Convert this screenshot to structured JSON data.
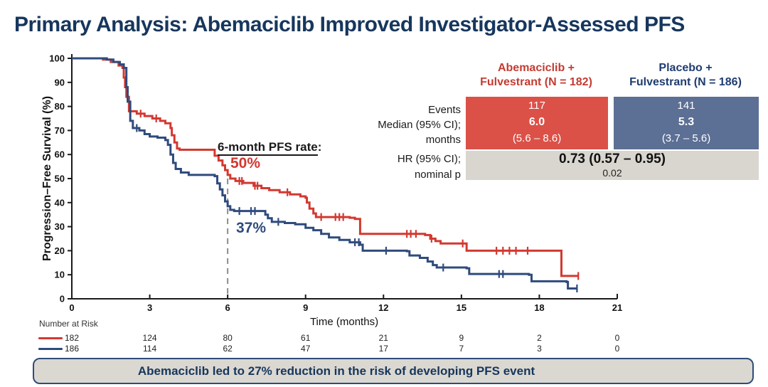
{
  "title": "Primary Analysis: Abemaciclib Improved Investigator-Assessed PFS",
  "annotations": {
    "heading": "6-month PFS rate",
    "colon": ":",
    "abemaciclib_rate": "50%",
    "placebo_rate": "37%"
  },
  "results_table": {
    "row_labels": {
      "events": "Events",
      "median1": "Median (95% CI);",
      "median2": "months",
      "hr1": "HR (95% CI);",
      "hr2": "nominal p"
    },
    "col1": {
      "header1": "Abemaciclib +",
      "header2": "Fulvestrant (N = 182)",
      "events": "117",
      "median": "6.0",
      "median_ci": "(5.6 – 8.6)"
    },
    "col2": {
      "header1": "Placebo +",
      "header2": "Fulvestrant (N = 186)",
      "events": "141",
      "median": "5.3",
      "median_ci": "(3.7 – 5.6)"
    },
    "hr_value": "0.73 (0.57 – 0.95)",
    "p_value": "0.02"
  },
  "banner": {
    "text": "Abemaciclib led to 27% reduction in the risk of developing PFS event"
  },
  "chart_data": {
    "type": "line",
    "subtype": "kaplan-meier-step",
    "title": "",
    "xlabel": "Time (months)",
    "ylabel": "Progression–Free Survival (%)",
    "xlim": [
      0,
      21
    ],
    "ylim": [
      0,
      100
    ],
    "x_ticks": [
      0,
      3,
      6,
      9,
      12,
      15,
      18,
      21
    ],
    "y_ticks": [
      0,
      10,
      20,
      30,
      40,
      50,
      60,
      70,
      80,
      90,
      100
    ],
    "grid": false,
    "reference_line": {
      "x": 6,
      "y_top": 50,
      "style": "dashed",
      "color": "#8C8C8C"
    },
    "colors": {
      "abemaciclib": "#D23931",
      "placebo": "#2F4B7C",
      "axis": "#1a1a1a"
    },
    "series": [
      {
        "name": "Abemaciclib + Fulvestrant",
        "n": 182,
        "color": "#D23931",
        "six_month_rate_pct": 50,
        "median_months": 6.0,
        "median_ci": [
          5.6,
          8.6
        ],
        "steps": [
          [
            0,
            100
          ],
          [
            1.2,
            99.5
          ],
          [
            1.5,
            98.5
          ],
          [
            1.8,
            97
          ],
          [
            1.95,
            96
          ],
          [
            2.0,
            92
          ],
          [
            2.05,
            88
          ],
          [
            2.1,
            84
          ],
          [
            2.2,
            78
          ],
          [
            2.5,
            77
          ],
          [
            2.8,
            76
          ],
          [
            3.1,
            75
          ],
          [
            3.4,
            74
          ],
          [
            3.6,
            73
          ],
          [
            3.8,
            71
          ],
          [
            3.85,
            68
          ],
          [
            3.95,
            65
          ],
          [
            4.05,
            62.5
          ],
          [
            4.15,
            62
          ],
          [
            5.4,
            62
          ],
          [
            5.5,
            59.5
          ],
          [
            5.65,
            57.5
          ],
          [
            5.8,
            55.5
          ],
          [
            5.9,
            53.5
          ],
          [
            6.0,
            51.5
          ],
          [
            6.1,
            50
          ],
          [
            6.3,
            49
          ],
          [
            6.6,
            48.2
          ],
          [
            7.0,
            47
          ],
          [
            7.3,
            46
          ],
          [
            7.6,
            45.2
          ],
          [
            8.0,
            44.3
          ],
          [
            8.4,
            43.4
          ],
          [
            8.8,
            42.6
          ],
          [
            9.0,
            42
          ],
          [
            9.05,
            40
          ],
          [
            9.15,
            37.5
          ],
          [
            9.3,
            35.5
          ],
          [
            9.4,
            34
          ],
          [
            10.7,
            33.7
          ],
          [
            10.9,
            33.2
          ],
          [
            11.1,
            27
          ],
          [
            13.6,
            26.5
          ],
          [
            13.8,
            25
          ],
          [
            14.0,
            24
          ],
          [
            14.2,
            23
          ],
          [
            15.2,
            20
          ],
          [
            18.8,
            20
          ],
          [
            18.85,
            9.5
          ],
          [
            19.5,
            9.5
          ]
        ],
        "censor_times": [
          2.65,
          3.25,
          6.45,
          6.55,
          7.05,
          7.15,
          8.3,
          9.6,
          10.15,
          10.3,
          10.45,
          12.9,
          13.05,
          13.25,
          13.85,
          15.05,
          16.35,
          16.6,
          16.85,
          17.1,
          17.55,
          19.5
        ]
      },
      {
        "name": "Placebo + Fulvestrant",
        "n": 186,
        "color": "#2F4B7C",
        "six_month_rate_pct": 37,
        "median_months": 5.3,
        "median_ci": [
          3.7,
          5.6
        ],
        "steps": [
          [
            0,
            100
          ],
          [
            1.35,
            99.5
          ],
          [
            1.6,
            98.5
          ],
          [
            1.85,
            97.5
          ],
          [
            2.0,
            96
          ],
          [
            2.1,
            88
          ],
          [
            2.15,
            82
          ],
          [
            2.25,
            74
          ],
          [
            2.35,
            71
          ],
          [
            2.6,
            70
          ],
          [
            2.8,
            68.5
          ],
          [
            3.0,
            67.5
          ],
          [
            3.3,
            67
          ],
          [
            3.6,
            66
          ],
          [
            3.7,
            64
          ],
          [
            3.8,
            60
          ],
          [
            3.9,
            56.5
          ],
          [
            4.0,
            54
          ],
          [
            4.2,
            52.5
          ],
          [
            4.5,
            51.5
          ],
          [
            5.5,
            51
          ],
          [
            5.6,
            48
          ],
          [
            5.7,
            45.5
          ],
          [
            5.8,
            43
          ],
          [
            5.9,
            40.5
          ],
          [
            6.0,
            38.5
          ],
          [
            6.1,
            37
          ],
          [
            6.25,
            36.5
          ],
          [
            7.3,
            36.5
          ],
          [
            7.45,
            35
          ],
          [
            7.55,
            33.5
          ],
          [
            7.7,
            32
          ],
          [
            8.2,
            31.5
          ],
          [
            8.6,
            31
          ],
          [
            9.0,
            29.5
          ],
          [
            9.3,
            28.5
          ],
          [
            9.6,
            27
          ],
          [
            9.9,
            25.5
          ],
          [
            10.3,
            24.5
          ],
          [
            10.7,
            23.5
          ],
          [
            11.1,
            22.5
          ],
          [
            11.2,
            20
          ],
          [
            12.9,
            19.8
          ],
          [
            13.0,
            18
          ],
          [
            13.4,
            17
          ],
          [
            13.7,
            15.5
          ],
          [
            13.9,
            14
          ],
          [
            14.05,
            13
          ],
          [
            15.2,
            12.7
          ],
          [
            15.3,
            10.3
          ],
          [
            17.6,
            10
          ],
          [
            17.7,
            7.3
          ],
          [
            19.05,
            7
          ],
          [
            19.1,
            4.3
          ],
          [
            19.45,
            4.3
          ]
        ],
        "censor_times": [
          2.5,
          6.45,
          6.9,
          7.05,
          7.95,
          10.9,
          11.05,
          12.1,
          14.3,
          16.45,
          16.6,
          19.45
        ]
      }
    ],
    "hazard_ratio": {
      "value": 0.73,
      "ci": [
        0.57,
        0.95
      ],
      "nominal_p": 0.02
    },
    "number_at_risk": {
      "label": "Number at Risk",
      "times": [
        0,
        3,
        6,
        9,
        12,
        15,
        18,
        21
      ],
      "rows": [
        {
          "series": "Abemaciclib + Fulvestrant",
          "color": "#D23931",
          "counts": [
            182,
            124,
            80,
            61,
            21,
            9,
            2,
            0
          ]
        },
        {
          "series": "Placebo + Fulvestrant",
          "color": "#2F4B7C",
          "counts": [
            186,
            114,
            62,
            47,
            17,
            7,
            3,
            0
          ]
        }
      ]
    }
  }
}
